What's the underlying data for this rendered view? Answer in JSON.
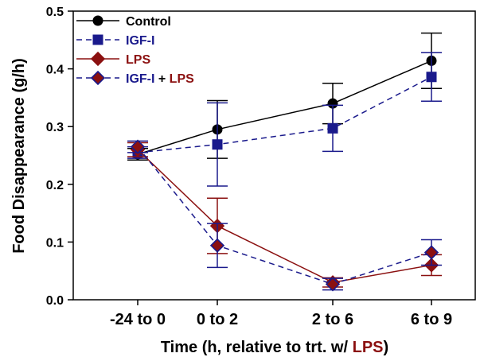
{
  "chart_data": {
    "type": "line",
    "categories": [
      "-24 to 0",
      "0 to 2",
      "2 to 6",
      "6 to 9"
    ],
    "ylabel": "Food Disappearance (g/h)",
    "xlabel": {
      "prefix": "Time (h, relative to trt. w/ ",
      "highlight": "LPS",
      "suffix": ")"
    },
    "ylim": [
      0,
      0.5
    ],
    "yticks": [
      "0.0",
      "0.1",
      "0.2",
      "0.3",
      "0.4",
      "0.5"
    ],
    "legend_position": "top-left",
    "series": [
      {
        "name": "Control",
        "color": "#000000",
        "dash": false,
        "marker": "circle",
        "values": [
          0.252,
          0.295,
          0.34,
          0.414
        ],
        "errors": [
          0.01,
          0.05,
          0.035,
          0.048
        ]
      },
      {
        "name": "IGF-I",
        "color": "#1a1a8c",
        "dash": true,
        "marker": "square",
        "values": [
          0.255,
          0.269,
          0.297,
          0.386
        ],
        "errors": [
          0.01,
          0.072,
          0.04,
          0.042
        ]
      },
      {
        "name": "LPS",
        "color": "#8b1010",
        "dash": false,
        "marker": "diamond",
        "values": [
          0.26,
          0.128,
          0.03,
          0.06
        ],
        "errors": [
          0.012,
          0.048,
          0.008,
          0.018
        ]
      },
      {
        "name": "IGF-I + LPS",
        "name_parts": [
          {
            "text": "IGF-I",
            "color": "#1a1a8c"
          },
          {
            "text": " + ",
            "color": "#000000"
          },
          {
            "text": "LPS",
            "color": "#8b1010"
          }
        ],
        "color": "#1a1a8c",
        "fill": "#8b1010",
        "dash": true,
        "marker": "diamond",
        "values": [
          0.265,
          0.094,
          0.027,
          0.082
        ],
        "errors": [
          0.01,
          0.038,
          0.01,
          0.022
        ]
      }
    ]
  }
}
